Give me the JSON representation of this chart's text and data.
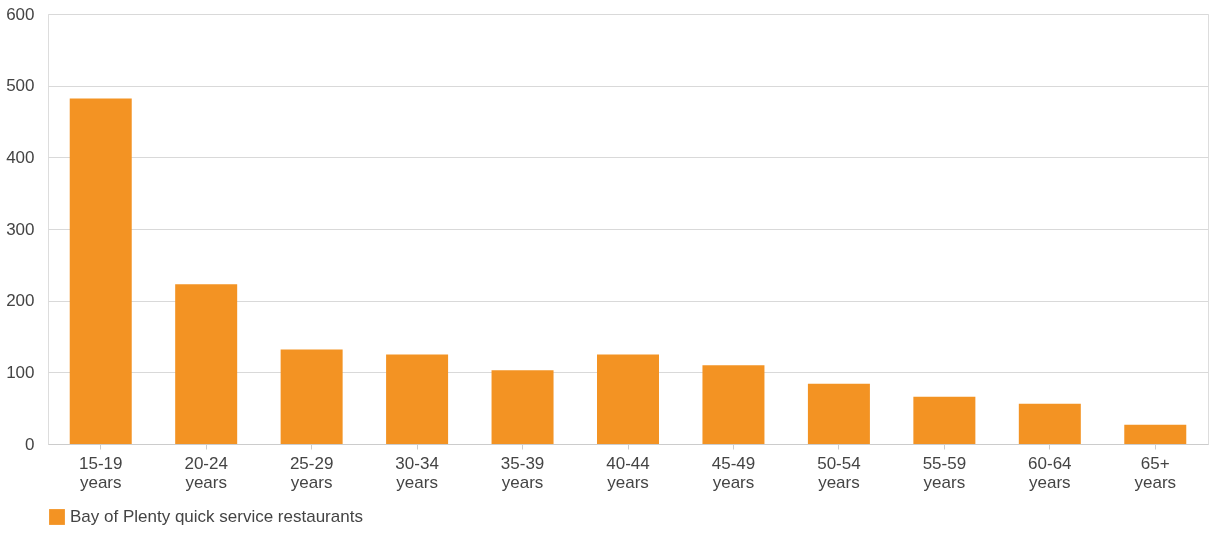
{
  "chart_data": {
    "type": "bar",
    "categories": [
      "15-19 years",
      "20-24 years",
      "25-29 years",
      "30-34 years",
      "35-39 years",
      "40-44 years",
      "45-49 years",
      "50-54 years",
      "55-59 years",
      "60-64 years",
      "65+ years"
    ],
    "series": [
      {
        "name": "Bay of Plenty quick service restaurants",
        "color": "#f39323",
        "values": [
          482,
          223,
          132,
          125,
          103,
          125,
          110,
          84,
          66,
          56,
          27
        ]
      }
    ],
    "ylim": [
      0,
      600
    ],
    "yticks": [
      0,
      100,
      200,
      300,
      400,
      500,
      600
    ],
    "grid": "y",
    "legend": "bottom"
  }
}
